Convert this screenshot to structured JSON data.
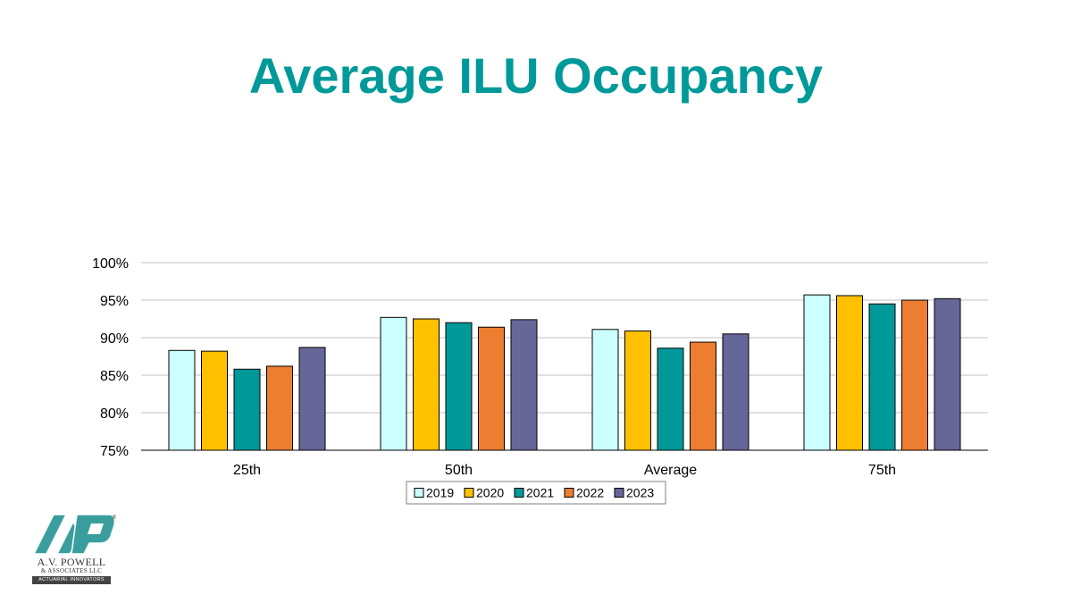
{
  "slide": {
    "title": "Average ILU Occupancy"
  },
  "logo": {
    "name": "A.V. POWELL",
    "sub": "& ASSOCIATES LLC",
    "tagline": "ACTUARIAL INNOVATORS",
    "mark": "AVP",
    "registered": "®",
    "colors": {
      "teal": "#3a9e9e",
      "dark": "#444444"
    }
  },
  "chart_data": {
    "type": "bar",
    "title": "",
    "xlabel": "",
    "ylabel": "",
    "categories": [
      "25th",
      "50th",
      "Average",
      "75th"
    ],
    "ylim": [
      0.75,
      1.0
    ],
    "yticks": [
      1.0,
      0.95,
      0.9,
      0.85,
      0.8,
      0.75
    ],
    "ytick_labels": [
      "100%",
      "95%",
      "90%",
      "85%",
      "80%",
      "75%"
    ],
    "grid": true,
    "legend": "bottom",
    "series": [
      {
        "name": "2019",
        "color": "#ccffff",
        "values": [
          0.883,
          0.927,
          0.911,
          0.957
        ]
      },
      {
        "name": "2020",
        "color": "#ffc000",
        "values": [
          0.882,
          0.925,
          0.909,
          0.956
        ]
      },
      {
        "name": "2021",
        "color": "#009999",
        "values": [
          0.858,
          0.92,
          0.886,
          0.945
        ]
      },
      {
        "name": "2022",
        "color": "#ed7d31",
        "values": [
          0.862,
          0.914,
          0.894,
          0.95
        ]
      },
      {
        "name": "2023",
        "color": "#666699",
        "values": [
          0.887,
          0.924,
          0.905,
          0.952
        ]
      }
    ]
  }
}
